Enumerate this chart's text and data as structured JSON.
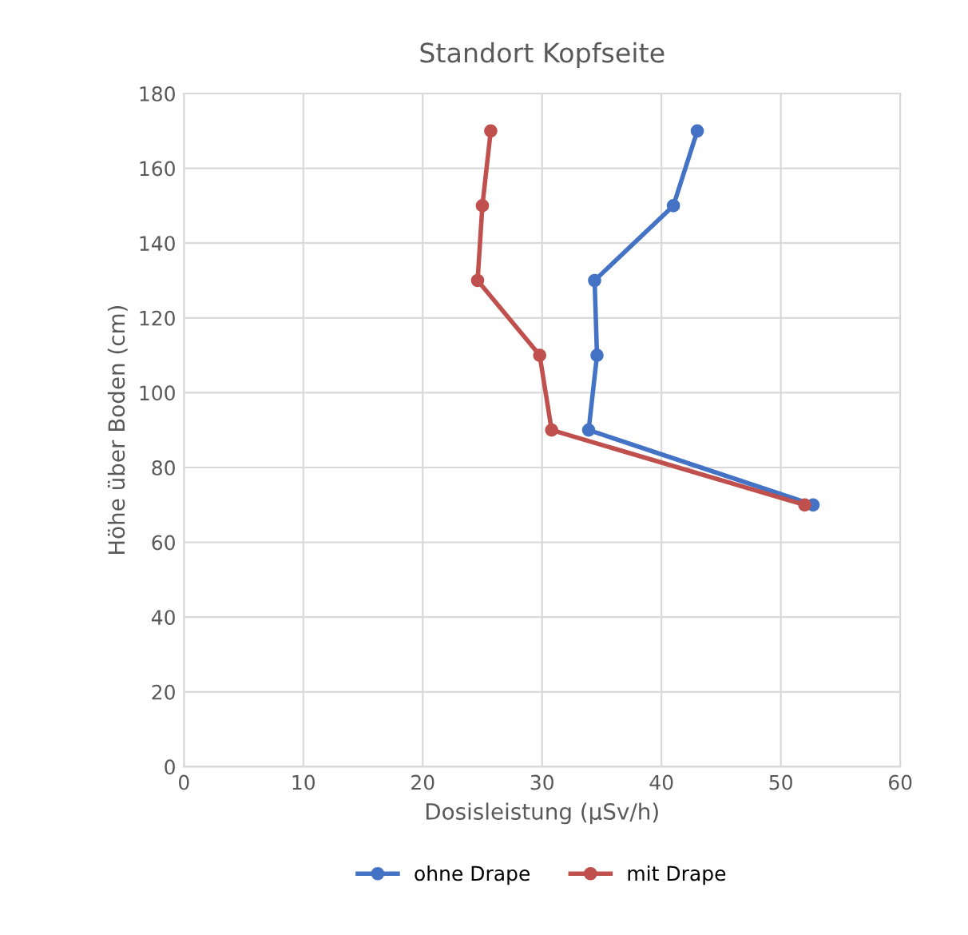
{
  "chart_data": {
    "type": "line",
    "title": "Standort Kopfseite",
    "xlabel": "Dosisleistung (µSv/h)",
    "ylabel": "Höhe über Boden (cm)",
    "series": [
      {
        "name": "ohne Drape",
        "color": "#4472c4",
        "x": [
          43.0,
          41.0,
          34.4,
          34.6,
          33.9,
          52.7
        ],
        "values": [
          170,
          150,
          130,
          110,
          90,
          70
        ]
      },
      {
        "name": "mit Drape",
        "color": "#c0504d",
        "x": [
          25.7,
          25.0,
          24.6,
          29.8,
          30.8,
          52.0
        ],
        "values": [
          170,
          150,
          130,
          110,
          90,
          70
        ]
      }
    ],
    "xlim": [
      0,
      60
    ],
    "xticks": [
      0,
      10,
      20,
      30,
      40,
      50,
      60
    ],
    "ylim": [
      0,
      180
    ],
    "yticks": [
      0,
      20,
      40,
      60,
      80,
      100,
      120,
      140,
      160,
      180
    ],
    "grid": true,
    "legend": "bottom",
    "marker": "circle",
    "line_style": "solid"
  }
}
